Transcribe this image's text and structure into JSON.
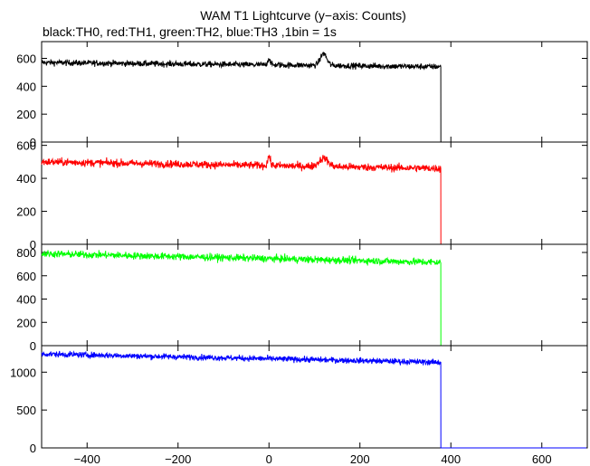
{
  "title": "WAM T1 Lightcurve (y−axis: Counts)",
  "subtitle": "black:TH0, red:TH1, green:TH2, blue:TH3 ,1bin = 1s",
  "chart_data": [
    {
      "type": "line",
      "name": "TH0",
      "color": "#000000",
      "xlim": [
        -500,
        700
      ],
      "ylim": [
        0,
        720
      ],
      "yticks": [
        0,
        200,
        400,
        600
      ],
      "data_end_x": 378,
      "level_start": 570,
      "level_end": 540,
      "noise": 22,
      "features": [
        {
          "x": 0,
          "height": 45,
          "width": 4
        },
        {
          "x": 120,
          "height": 85,
          "width": 10
        }
      ]
    },
    {
      "type": "line",
      "name": "TH1",
      "color": "#ff0000",
      "xlim": [
        -500,
        700
      ],
      "ylim": [
        0,
        620
      ],
      "yticks": [
        0,
        200,
        400,
        600
      ],
      "data_end_x": 378,
      "level_start": 500,
      "level_end": 460,
      "noise": 24,
      "features": [
        {
          "x": 0,
          "height": 55,
          "width": 4
        },
        {
          "x": 120,
          "height": 50,
          "width": 14
        }
      ]
    },
    {
      "type": "line",
      "name": "TH2",
      "color": "#00ff00",
      "xlim": [
        -500,
        700
      ],
      "ylim": [
        0,
        870
      ],
      "yticks": [
        0,
        200,
        400,
        600,
        800
      ],
      "data_end_x": 378,
      "level_start": 790,
      "level_end": 715,
      "noise": 32,
      "features": []
    },
    {
      "type": "line",
      "name": "TH3",
      "color": "#0000ff",
      "xlim": [
        -500,
        700
      ],
      "ylim": [
        0,
        1350
      ],
      "yticks": [
        0,
        500,
        1000
      ],
      "data_end_x": 378,
      "level_start": 1240,
      "level_end": 1130,
      "noise": 40,
      "features": []
    }
  ],
  "xticks": [
    -400,
    -200,
    0,
    200,
    400,
    600
  ],
  "xlabel": ""
}
